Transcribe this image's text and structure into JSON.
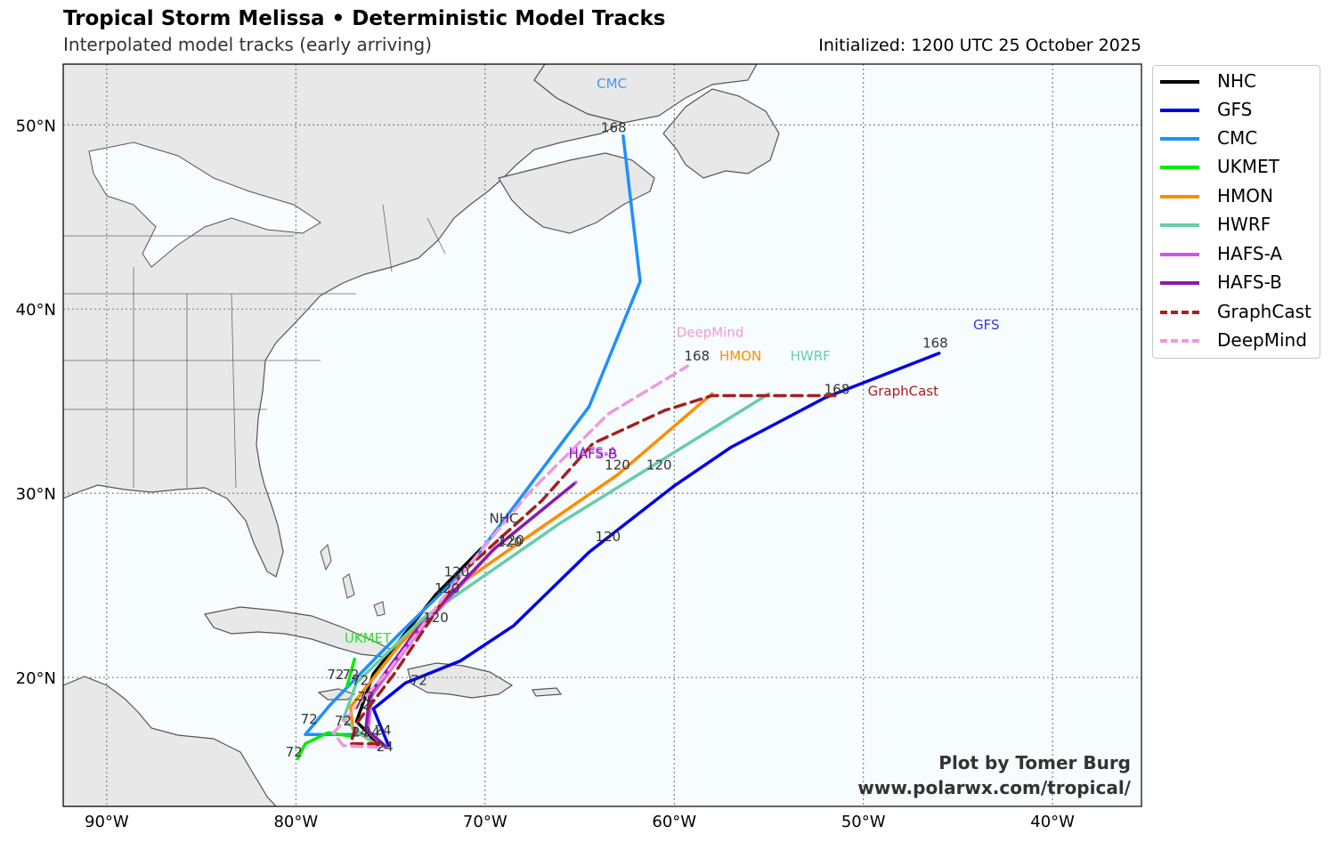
{
  "header": {
    "title": "Tropical Storm Melissa • Deterministic Model Tracks",
    "subtitle": "Interpolated model tracks (early arriving)",
    "initialized": "Initialized: 1200 UTC 25 October 2025"
  },
  "credits": {
    "line1": "Plot by Tomer Burg",
    "line2": "www.polarwx.com/tropical/"
  },
  "map": {
    "lon_range": [
      -92.3,
      -35.3
    ],
    "lat_range": [
      13.0,
      53.3
    ],
    "lon_ticks": [
      {
        "value": -90,
        "label": "90°W"
      },
      {
        "value": -80,
        "label": "80°W"
      },
      {
        "value": -70,
        "label": "70°W"
      },
      {
        "value": -60,
        "label": "60°W"
      },
      {
        "value": -50,
        "label": "50°W"
      },
      {
        "value": -40,
        "label": "40°W"
      }
    ],
    "lat_ticks": [
      {
        "value": 20,
        "label": "20°N"
      },
      {
        "value": 30,
        "label": "30°N"
      },
      {
        "value": 40,
        "label": "40°N"
      },
      {
        "value": 50,
        "label": "50°N"
      }
    ],
    "gridlines": "dotted",
    "ocean_color": "#f7fcfe",
    "land_color": "#e8e8e8"
  },
  "legend": {
    "placement": "right-outside",
    "items": [
      {
        "label": "NHC",
        "color": "#000000",
        "style": "solid"
      },
      {
        "label": "GFS",
        "color": "#0000e8",
        "style": "solid"
      },
      {
        "label": "CMC",
        "color": "#1e90ff",
        "style": "solid"
      },
      {
        "label": "UKMET",
        "color": "#00ee00",
        "style": "solid"
      },
      {
        "label": "HMON",
        "color": "#ff8c00",
        "style": "solid"
      },
      {
        "label": "HWRF",
        "color": "#66cdaa",
        "style": "solid"
      },
      {
        "label": "HAFS-A",
        "color": "#cc55ee",
        "style": "solid"
      },
      {
        "label": "HAFS-B",
        "color": "#8b1aad",
        "style": "solid"
      },
      {
        "label": "GraphCast",
        "color": "#a52020",
        "style": "dashed"
      },
      {
        "label": "DeepMind",
        "color": "#ee99dd",
        "style": "dashed"
      }
    ]
  },
  "chart_data": {
    "type": "map-tracks",
    "series": [
      {
        "name": "NHC",
        "color": "#000000",
        "dashed": false,
        "points": [
          [
            -75.6,
            16.2
          ],
          [
            -76.2,
            17.0
          ],
          [
            -76.8,
            17.6
          ],
          [
            -75.9,
            20.2
          ],
          [
            -72.6,
            24.5
          ],
          [
            -70.2,
            27.0
          ]
        ],
        "end_label": {
          "text": "NHC",
          "lon": -69.0,
          "lat": 28.4,
          "color": "#333333"
        },
        "hour_labels": []
      },
      {
        "name": "GFS",
        "color": "#0000e8",
        "dashed": false,
        "points": [
          [
            -75.1,
            16.3
          ],
          [
            -75.5,
            17.3
          ],
          [
            -75.9,
            18.3
          ],
          [
            -74.2,
            19.7
          ],
          [
            -71.3,
            20.9
          ],
          [
            -68.5,
            22.8
          ],
          [
            -64.5,
            26.8
          ],
          [
            -60.0,
            30.4
          ],
          [
            -57.0,
            32.5
          ],
          [
            -52.0,
            35.2
          ],
          [
            -46.0,
            37.6
          ]
        ],
        "end_label": {
          "text": "GFS",
          "lon": -43.5,
          "lat": 38.9,
          "color": "#3333dd"
        },
        "hour_labels": [
          {
            "text": "24",
            "lon": -75.4,
            "lat": 16.9
          },
          {
            "text": "72",
            "lon": -73.5,
            "lat": 19.6
          },
          {
            "text": "120",
            "lon": -63.5,
            "lat": 27.4
          },
          {
            "text": "168",
            "lon": -46.2,
            "lat": 37.9
          }
        ]
      },
      {
        "name": "CMC",
        "color": "#1e90ff",
        "dashed": false,
        "points": [
          [
            -76.5,
            16.9
          ],
          [
            -79.5,
            16.9
          ],
          [
            -78.2,
            18.5
          ],
          [
            -76.5,
            20.3
          ],
          [
            -74.5,
            22.4
          ],
          [
            -70.8,
            26.1
          ],
          [
            -64.5,
            34.7
          ],
          [
            -61.8,
            41.5
          ],
          [
            -62.7,
            49.4
          ]
        ],
        "end_label": {
          "text": "CMC",
          "lon": -63.3,
          "lat": 52.0,
          "color": "#4499ee"
        },
        "hour_labels": [
          {
            "text": "72",
            "lon": -79.3,
            "lat": 17.5
          },
          {
            "text": "120",
            "lon": -71.5,
            "lat": 25.5
          },
          {
            "text": "168",
            "lon": -63.2,
            "lat": 49.6
          }
        ]
      },
      {
        "name": "UKMET",
        "color": "#00ee00",
        "dashed": false,
        "points": [
          [
            -77.0,
            16.8
          ],
          [
            -78.3,
            17.0
          ],
          [
            -79.5,
            16.4
          ],
          [
            -79.9,
            15.6
          ]
        ],
        "extra": [
          [
            -77.3,
            19.5
          ],
          [
            -76.9,
            21.0
          ]
        ],
        "end_label": {
          "text": "UKMET",
          "lon": -76.2,
          "lat": 21.9,
          "color": "#33dd33"
        },
        "hour_labels": [
          {
            "text": "72",
            "lon": -80.1,
            "lat": 15.7
          },
          {
            "text": "72",
            "lon": -77.1,
            "lat": 19.9
          }
        ]
      },
      {
        "name": "HMON",
        "color": "#ff8c00",
        "dashed": false,
        "points": [
          [
            -75.8,
            16.4
          ],
          [
            -77.0,
            17.2
          ],
          [
            -77.1,
            18.4
          ],
          [
            -74.5,
            21.8
          ],
          [
            -71.0,
            25.3
          ],
          [
            -67.8,
            27.6
          ],
          [
            -63.0,
            31.0
          ],
          [
            -58.0,
            35.4
          ]
        ],
        "end_label": {
          "text": "HMON",
          "lon": -56.5,
          "lat": 37.2,
          "color": "#ff8c00"
        },
        "hour_labels": [
          {
            "text": "72",
            "lon": -76.6,
            "lat": 19.6
          },
          {
            "text": "120",
            "lon": -63.0,
            "lat": 31.3
          }
        ]
      },
      {
        "name": "HWRF",
        "color": "#66cdaa",
        "dashed": false,
        "points": [
          [
            -76.1,
            16.6
          ],
          [
            -77.5,
            17.7
          ],
          [
            -76.8,
            19.7
          ],
          [
            -73.3,
            23.2
          ],
          [
            -66.0,
            28.4
          ],
          [
            -55.0,
            35.4
          ]
        ],
        "end_label": {
          "text": "HWRF",
          "lon": -52.8,
          "lat": 37.2,
          "color": "#66cdaa"
        },
        "hour_labels": [
          {
            "text": "72",
            "lon": -77.9,
            "lat": 19.9
          },
          {
            "text": "120",
            "lon": -60.8,
            "lat": 31.3
          }
        ]
      },
      {
        "name": "HAFS-A",
        "color": "#cc55ee",
        "dashed": false,
        "points": [
          [
            -75.3,
            16.2
          ],
          [
            -76.2,
            17.1
          ],
          [
            -76.0,
            19.0
          ],
          [
            -73.5,
            22.5
          ],
          [
            -69.6,
            26.9
          ],
          [
            -65.2,
            30.6
          ]
        ],
        "end_label": {
          "text": "HAFS-A",
          "lon": -64.3,
          "lat": 32.0,
          "color": "#cc55ee"
        },
        "hour_labels": [
          {
            "text": "72",
            "lon": -76.5,
            "lat": 18.3
          },
          {
            "text": "120",
            "lon": -68.6,
            "lat": 27.2
          }
        ]
      },
      {
        "name": "HAFS-B",
        "color": "#8b1aad",
        "dashed": false,
        "points": [
          [
            -75.3,
            16.3
          ],
          [
            -76.3,
            17.2
          ],
          [
            -76.1,
            19.1
          ],
          [
            -73.6,
            22.6
          ],
          [
            -69.5,
            27.0
          ],
          [
            -65.3,
            30.5
          ]
        ],
        "end_label": {
          "text": "HAFS-B",
          "lon": -64.3,
          "lat": 31.9,
          "color": "#8b1aad"
        },
        "hour_labels": [
          {
            "text": "24",
            "lon": -76.0,
            "lat": 16.8
          },
          {
            "text": "120",
            "lon": -68.7,
            "lat": 27.1
          }
        ]
      },
      {
        "name": "GraphCast",
        "color": "#a52020",
        "dashed": true,
        "points": [
          [
            -75.6,
            16.4
          ],
          [
            -77.1,
            16.4
          ],
          [
            -76.8,
            17.5
          ],
          [
            -74.8,
            20.2
          ],
          [
            -71.2,
            25.7
          ],
          [
            -67.0,
            29.6
          ],
          [
            -64.3,
            32.7
          ],
          [
            -60.5,
            34.5
          ],
          [
            -58.0,
            35.3
          ],
          [
            -51.5,
            35.3
          ]
        ],
        "end_label": {
          "text": "GraphCast",
          "lon": -47.9,
          "lat": 35.3,
          "color": "#a52020"
        },
        "hour_labels": [
          {
            "text": "24",
            "lon": -76.6,
            "lat": 16.8
          },
          {
            "text": "72",
            "lon": -76.3,
            "lat": 18.7
          },
          {
            "text": "120",
            "lon": -72.0,
            "lat": 24.6
          },
          {
            "text": "168",
            "lon": -51.4,
            "lat": 35.4
          }
        ]
      },
      {
        "name": "DeepMind",
        "color": "#ee99dd",
        "dashed": true,
        "points": [
          [
            -75.6,
            16.2
          ],
          [
            -77.5,
            16.3
          ],
          [
            -78.0,
            17.0
          ],
          [
            -75.0,
            20.5
          ],
          [
            -71.5,
            25.3
          ],
          [
            -67.7,
            30.0
          ],
          [
            -63.5,
            34.3
          ],
          [
            -59.3,
            36.9
          ]
        ],
        "end_label": {
          "text": "DeepMind",
          "lon": -58.1,
          "lat": 38.5,
          "color": "#ee99dd"
        },
        "hour_labels": [
          {
            "text": "24",
            "lon": -75.3,
            "lat": 16.0
          },
          {
            "text": "72",
            "lon": -77.5,
            "lat": 17.4
          },
          {
            "text": "120",
            "lon": -72.6,
            "lat": 23.0
          },
          {
            "text": "168",
            "lon": -58.8,
            "lat": 37.2
          }
        ]
      }
    ]
  }
}
